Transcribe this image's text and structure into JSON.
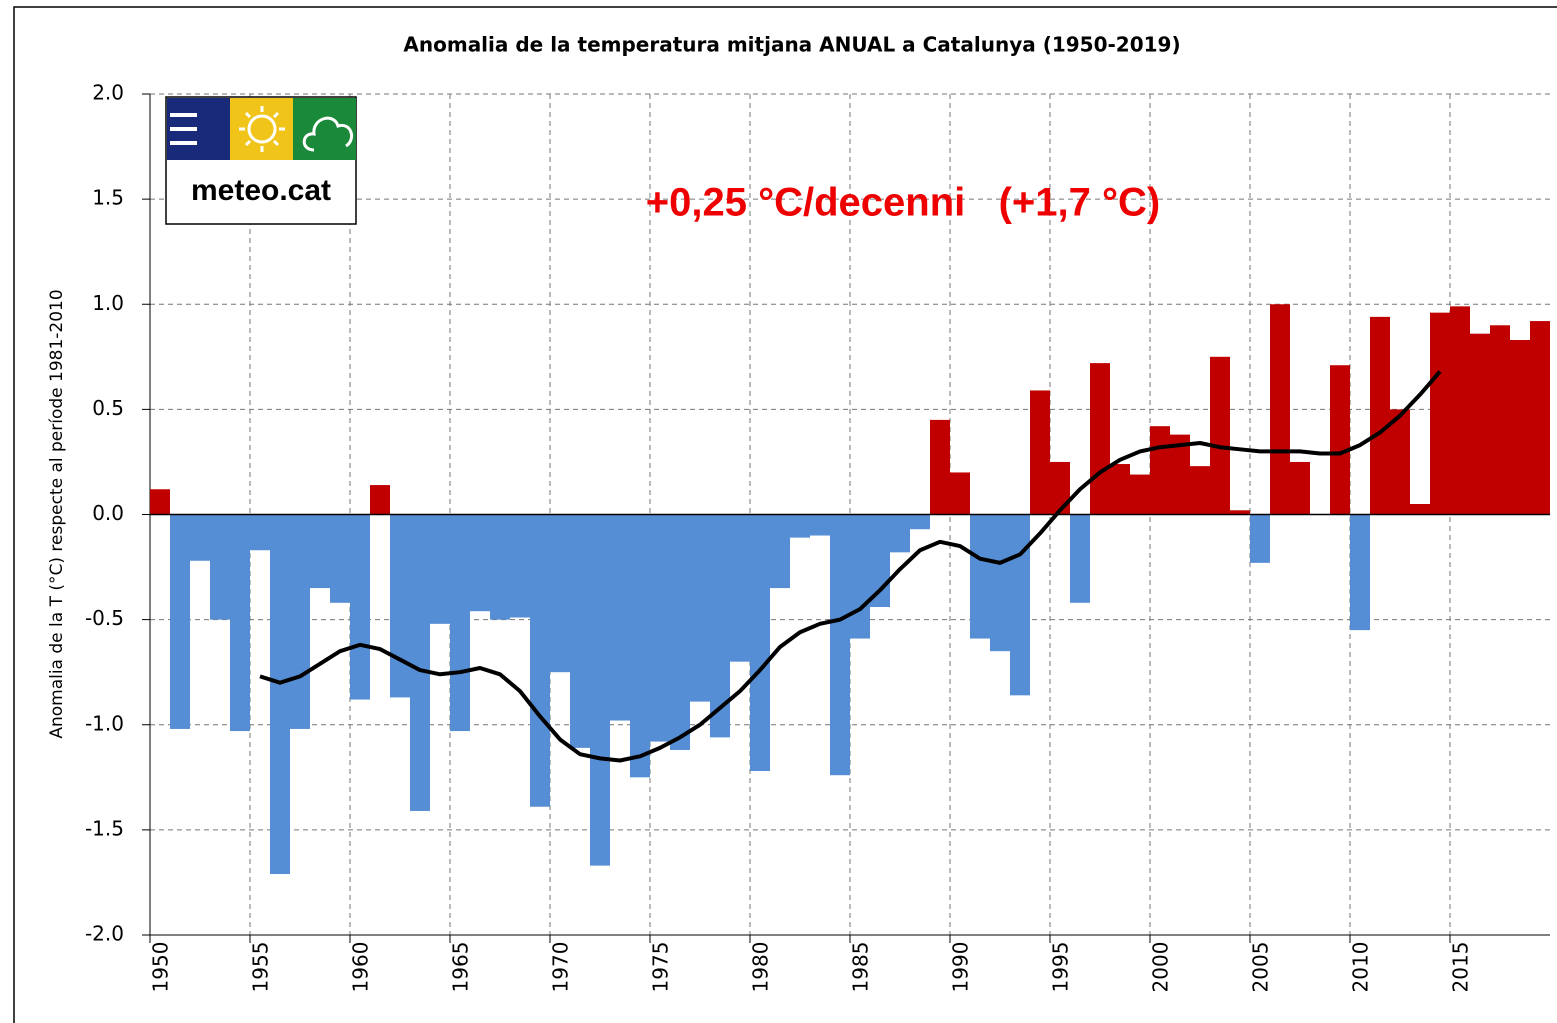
{
  "chart_data": {
    "type": "bar",
    "title": "Anomalia de la temperatura mitjana ANUAL a Catalunya (1950-2019)",
    "y_label": "Anomalia de la T (°C) respecte al període 1981-2010",
    "annotation": "+0,25 °C/decenni   (+1,7 °C)",
    "logo_text": "meteo.cat",
    "categories": [
      "1950",
      null,
      null,
      null,
      null,
      "1955",
      null,
      null,
      null,
      null,
      "1960",
      null,
      null,
      null,
      null,
      "1965",
      null,
      null,
      null,
      null,
      "1970",
      null,
      null,
      null,
      null,
      "1975",
      null,
      null,
      null,
      null,
      "1980",
      null,
      null,
      null,
      null,
      "1985",
      null,
      null,
      null,
      null,
      "1990",
      null,
      null,
      null,
      null,
      "1995",
      null,
      null,
      null,
      null,
      "2000",
      null,
      null,
      null,
      null,
      "2005",
      null,
      null,
      null,
      null,
      "2010",
      null,
      null,
      null,
      null,
      "2015",
      null,
      null,
      null,
      null
    ],
    "series": [
      {
        "type": "bar",
        "positive_color": "#c00000",
        "negative_color": "#558ed5",
        "values": [
          0.12,
          -1.02,
          -0.22,
          -0.5,
          -1.03,
          -0.17,
          -1.71,
          -1.02,
          -0.35,
          -0.42,
          -0.88,
          0.14,
          -0.87,
          -1.41,
          -0.52,
          -1.03,
          -0.46,
          -0.5,
          -0.49,
          -1.39,
          -0.75,
          -1.11,
          -1.67,
          -0.98,
          -1.25,
          -1.08,
          -1.12,
          -0.89,
          -1.06,
          -0.7,
          -1.22,
          -0.35,
          -0.11,
          -0.1,
          -1.24,
          -0.59,
          -0.44,
          -0.18,
          -0.07,
          0.45,
          0.2,
          -0.59,
          -0.65,
          -0.86,
          0.59,
          0.25,
          -0.42,
          0.72,
          0.24,
          0.19,
          0.42,
          0.38,
          0.23,
          0.75,
          0.02,
          -0.23,
          1.0,
          0.25,
          0.0,
          0.71,
          -0.55,
          0.94,
          0.5,
          0.05,
          0.96,
          0.99,
          0.86,
          0.9,
          0.83,
          0.92
        ]
      },
      {
        "type": "line",
        "color": "#000000",
        "values": [
          null,
          null,
          null,
          null,
          null,
          -0.77,
          -0.8,
          -0.77,
          -0.71,
          -0.65,
          -0.62,
          -0.64,
          -0.69,
          -0.74,
          -0.76,
          -0.75,
          -0.73,
          -0.76,
          -0.84,
          -0.96,
          -1.07,
          -1.14,
          -1.16,
          -1.17,
          -1.15,
          -1.11,
          -1.06,
          -1.0,
          -0.92,
          -0.84,
          -0.74,
          -0.63,
          -0.56,
          -0.52,
          -0.5,
          -0.45,
          -0.36,
          -0.26,
          -0.17,
          -0.13,
          -0.15,
          -0.21,
          -0.23,
          -0.19,
          -0.09,
          0.02,
          0.12,
          0.2,
          0.26,
          0.3,
          0.32,
          0.33,
          0.34,
          0.32,
          0.31,
          0.3,
          0.3,
          0.3,
          0.29,
          0.29,
          0.33,
          0.39,
          0.47,
          0.57,
          0.68,
          null,
          null,
          null,
          null,
          null
        ]
      }
    ],
    "ylim": [
      -2,
      2
    ],
    "yticks": [
      {
        "value": -2,
        "label": "-2.0"
      },
      {
        "value": -1.5,
        "label": "-1.5"
      },
      {
        "value": -1,
        "label": "-1.0"
      },
      {
        "value": -0.5,
        "label": "-0.5"
      },
      {
        "value": 0,
        "label": "0.0"
      },
      {
        "value": 0.5,
        "label": "0.5"
      },
      {
        "value": 1,
        "label": "1.0"
      },
      {
        "value": 1.5,
        "label": "1.5"
      },
      {
        "value": 2,
        "label": "2.0"
      }
    ],
    "grid": true
  }
}
